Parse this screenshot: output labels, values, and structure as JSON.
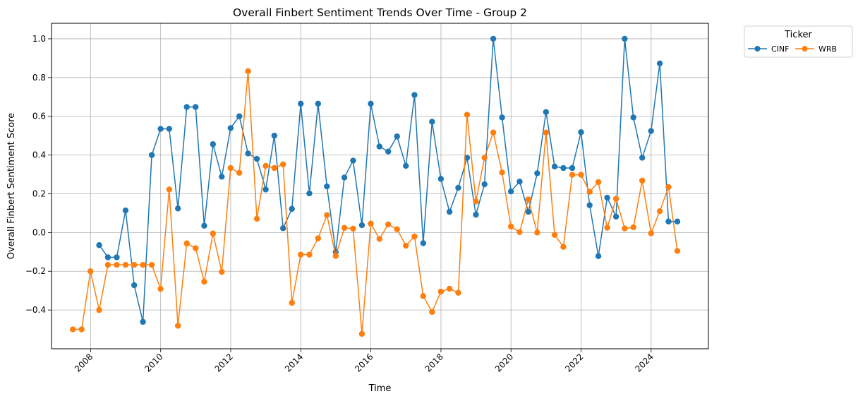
{
  "chart_data": {
    "type": "line",
    "title": "Overall Finbert Sentiment Trends Over Time - Group 2",
    "xlabel": "Time",
    "ylabel": "Overall Finbert Sentiment Score",
    "x_ticks": [
      "2008",
      "2010",
      "2012",
      "2014",
      "2016",
      "2018",
      "2020",
      "2022",
      "2024"
    ],
    "y_ticks": [
      "−0.4",
      "−0.2",
      "0.0",
      "0.2",
      "0.4",
      "0.6",
      "0.8",
      "1.0"
    ],
    "xlim": [
      "2006-11-20",
      "2025-08-20"
    ],
    "ylim": [
      -0.6,
      1.08
    ],
    "grid": true,
    "legend": {
      "title": "Ticker",
      "placement": "outside-top-right",
      "columns": 2
    },
    "series": [
      {
        "name": "CINF",
        "color": "#1f77b4",
        "points": [
          [
            "2008-03-31",
            -0.065
          ],
          [
            "2008-06-30",
            -0.128
          ],
          [
            "2008-09-30",
            -0.128
          ],
          [
            "2008-12-31",
            0.114
          ],
          [
            "2009-03-31",
            -0.272
          ],
          [
            "2009-06-30",
            -0.461
          ],
          [
            "2009-09-30",
            0.4
          ],
          [
            "2009-12-31",
            0.535
          ],
          [
            "2010-03-31",
            0.535
          ],
          [
            "2010-06-30",
            0.124
          ],
          [
            "2010-09-30",
            0.648
          ],
          [
            "2010-12-31",
            0.648
          ],
          [
            "2011-03-31",
            0.035
          ],
          [
            "2011-06-30",
            0.456
          ],
          [
            "2011-09-30",
            0.288
          ],
          [
            "2011-12-31",
            0.539
          ],
          [
            "2012-03-31",
            0.6
          ],
          [
            "2012-06-30",
            0.408
          ],
          [
            "2012-09-30",
            0.38
          ],
          [
            "2012-12-31",
            0.222
          ],
          [
            "2013-03-31",
            0.5
          ],
          [
            "2013-06-30",
            0.022
          ],
          [
            "2013-09-30",
            0.122
          ],
          [
            "2013-12-31",
            0.665
          ],
          [
            "2014-03-31",
            0.202
          ],
          [
            "2014-06-30",
            0.665
          ],
          [
            "2014-09-30",
            0.238
          ],
          [
            "2014-12-31",
            -0.1
          ],
          [
            "2015-03-31",
            0.284
          ],
          [
            "2015-06-30",
            0.371
          ],
          [
            "2015-09-30",
            0.038
          ],
          [
            "2015-12-31",
            0.665
          ],
          [
            "2016-03-31",
            0.444
          ],
          [
            "2016-06-30",
            0.418
          ],
          [
            "2016-09-30",
            0.496
          ],
          [
            "2016-12-31",
            0.344
          ],
          [
            "2017-03-31",
            0.71
          ],
          [
            "2017-06-30",
            -0.055
          ],
          [
            "2017-09-30",
            0.572
          ],
          [
            "2017-12-31",
            0.277
          ],
          [
            "2018-03-31",
            0.107
          ],
          [
            "2018-06-30",
            0.231
          ],
          [
            "2018-09-30",
            0.386
          ],
          [
            "2018-12-31",
            0.092
          ],
          [
            "2019-03-31",
            0.249
          ],
          [
            "2019-06-30",
            1.0
          ],
          [
            "2019-09-30",
            0.594
          ],
          [
            "2019-12-31",
            0.212
          ],
          [
            "2020-03-31",
            0.263
          ],
          [
            "2020-06-30",
            0.107
          ],
          [
            "2020-09-30",
            0.306
          ],
          [
            "2020-12-31",
            0.622
          ],
          [
            "2021-03-31",
            0.341
          ],
          [
            "2021-06-30",
            0.333
          ],
          [
            "2021-09-30",
            0.333
          ],
          [
            "2021-12-31",
            0.518
          ],
          [
            "2022-03-31",
            0.141
          ],
          [
            "2022-06-30",
            -0.122
          ],
          [
            "2022-09-30",
            0.18
          ],
          [
            "2022-12-31",
            0.082
          ],
          [
            "2023-03-31",
            1.0
          ],
          [
            "2023-06-30",
            0.594
          ],
          [
            "2023-09-30",
            0.386
          ],
          [
            "2023-12-31",
            0.524
          ],
          [
            "2024-03-31",
            0.873
          ],
          [
            "2024-06-30",
            0.057
          ],
          [
            "2024-09-30",
            0.057
          ]
        ]
      },
      {
        "name": "WRB",
        "color": "#ff7f0e",
        "points": [
          [
            "2007-06-30",
            -0.5
          ],
          [
            "2007-09-30",
            -0.5
          ],
          [
            "2007-12-31",
            -0.2
          ],
          [
            "2008-03-31",
            -0.4
          ],
          [
            "2008-06-30",
            -0.167
          ],
          [
            "2008-09-30",
            -0.167
          ],
          [
            "2008-12-31",
            -0.167
          ],
          [
            "2009-03-31",
            -0.167
          ],
          [
            "2009-06-30",
            -0.167
          ],
          [
            "2009-09-30",
            -0.167
          ],
          [
            "2009-12-31",
            -0.291
          ],
          [
            "2010-03-31",
            0.222
          ],
          [
            "2010-06-30",
            -0.481
          ],
          [
            "2010-09-30",
            -0.056
          ],
          [
            "2010-12-31",
            -0.081
          ],
          [
            "2011-03-31",
            -0.254
          ],
          [
            "2011-06-30",
            -0.005
          ],
          [
            "2011-09-30",
            -0.203
          ],
          [
            "2011-12-31",
            0.333
          ],
          [
            "2012-03-31",
            0.308
          ],
          [
            "2012-06-30",
            0.833
          ],
          [
            "2012-09-30",
            0.071
          ],
          [
            "2012-12-31",
            0.344
          ],
          [
            "2013-03-31",
            0.333
          ],
          [
            "2013-06-30",
            0.352
          ],
          [
            "2013-09-30",
            -0.363
          ],
          [
            "2013-12-31",
            -0.114
          ],
          [
            "2014-03-31",
            -0.114
          ],
          [
            "2014-06-30",
            -0.03
          ],
          [
            "2014-09-30",
            0.09
          ],
          [
            "2014-12-31",
            -0.121
          ],
          [
            "2015-03-31",
            0.024
          ],
          [
            "2015-06-30",
            0.02
          ],
          [
            "2015-09-30",
            -0.523
          ],
          [
            "2015-12-31",
            0.046
          ],
          [
            "2016-03-31",
            -0.033
          ],
          [
            "2016-06-30",
            0.042
          ],
          [
            "2016-09-30",
            0.017
          ],
          [
            "2016-12-31",
            -0.068
          ],
          [
            "2017-03-31",
            -0.02
          ],
          [
            "2017-06-30",
            -0.328
          ],
          [
            "2017-09-30",
            -0.41
          ],
          [
            "2017-12-31",
            -0.305
          ],
          [
            "2018-03-31",
            -0.29
          ],
          [
            "2018-06-30",
            -0.311
          ],
          [
            "2018-09-30",
            0.608
          ],
          [
            "2018-12-31",
            0.16
          ],
          [
            "2019-03-31",
            0.386
          ],
          [
            "2019-06-30",
            0.516
          ],
          [
            "2019-09-30",
            0.31
          ],
          [
            "2019-12-31",
            0.031
          ],
          [
            "2020-03-31",
            0.002
          ],
          [
            "2020-06-30",
            0.171
          ],
          [
            "2020-09-30",
            0.0
          ],
          [
            "2020-12-31",
            0.516
          ],
          [
            "2021-03-31",
            -0.012
          ],
          [
            "2021-06-30",
            -0.074
          ],
          [
            "2021-09-30",
            0.298
          ],
          [
            "2021-12-31",
            0.298
          ],
          [
            "2022-03-31",
            0.21
          ],
          [
            "2022-06-30",
            0.26
          ],
          [
            "2022-09-30",
            0.025
          ],
          [
            "2022-12-31",
            0.174
          ],
          [
            "2023-03-31",
            0.021
          ],
          [
            "2023-06-30",
            0.027
          ],
          [
            "2023-09-30",
            0.268
          ],
          [
            "2023-12-31",
            -0.004
          ],
          [
            "2024-03-31",
            0.11
          ],
          [
            "2024-06-30",
            0.235
          ],
          [
            "2024-09-30",
            -0.095
          ]
        ]
      }
    ]
  }
}
